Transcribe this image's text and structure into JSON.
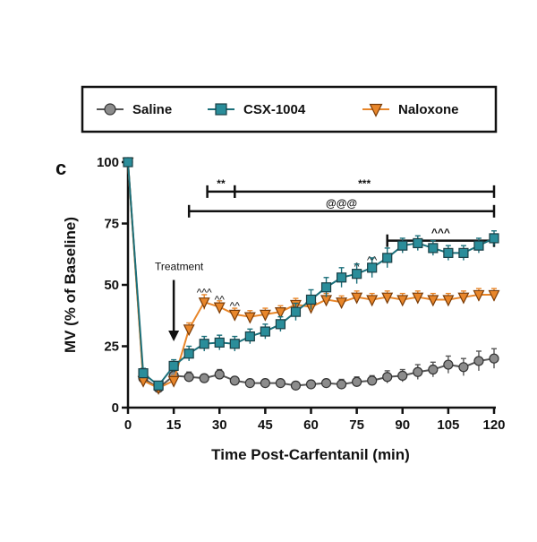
{
  "panel_label": "c",
  "chart_data": {
    "type": "line",
    "xlabel": "Time Post-Carfentanil (min)",
    "ylabel": "MV (% of Baseline)",
    "xlim": [
      0,
      120
    ],
    "ylim": [
      0,
      100
    ],
    "xticks": [
      0,
      15,
      30,
      45,
      60,
      75,
      90,
      105,
      120
    ],
    "yticks": [
      0,
      25,
      50,
      75,
      100
    ],
    "grid": false,
    "legend": "top, framed, horizontal",
    "series": [
      {
        "name": "Saline",
        "marker": "circle",
        "color": "#8c8c8c",
        "line_color": "#555555",
        "x": [
          0,
          5,
          10,
          15,
          20,
          25,
          30,
          35,
          40,
          45,
          50,
          55,
          60,
          65,
          70,
          75,
          80,
          85,
          90,
          95,
          100,
          105,
          110,
          115,
          120
        ],
        "values": [
          100,
          12,
          8,
          13,
          12.5,
          12,
          13.5,
          11,
          10,
          10,
          10,
          9,
          9.5,
          10,
          9.5,
          10.5,
          11,
          12.5,
          13,
          14.5,
          15.5,
          17.5,
          16.5,
          19,
          20
        ],
        "errors": [
          0,
          2,
          1.5,
          2,
          2,
          1.5,
          2,
          1.5,
          1.5,
          1.5,
          1.5,
          1.5,
          1.5,
          1.5,
          2,
          2,
          2,
          2.5,
          2.5,
          3,
          3,
          3.5,
          3.5,
          4,
          4
        ]
      },
      {
        "name": "CSX-1004",
        "marker": "square",
        "color": "#2a8d9a",
        "line_color": "#1b6f7a",
        "x": [
          0,
          5,
          10,
          15,
          20,
          25,
          30,
          35,
          40,
          45,
          50,
          55,
          60,
          65,
          70,
          75,
          80,
          85,
          90,
          95,
          100,
          105,
          110,
          115,
          120
        ],
        "values": [
          100,
          14,
          9,
          17,
          22,
          26,
          26.5,
          26,
          29,
          31,
          34,
          39,
          44,
          49,
          53,
          54.5,
          57,
          61,
          66,
          67,
          65,
          63,
          63,
          66,
          69
        ],
        "errors": [
          0,
          2,
          1.5,
          2.5,
          3,
          3,
          3,
          3,
          3,
          3,
          3,
          3.5,
          4,
          4,
          4,
          4,
          4,
          4,
          3,
          3,
          3,
          3,
          3,
          3,
          3
        ]
      },
      {
        "name": "Naloxone",
        "marker": "triangle-down",
        "color": "#e8862a",
        "line_color": "#e8862a",
        "x": [
          0,
          5,
          10,
          15,
          20,
          25,
          30,
          35,
          40,
          45,
          50,
          55,
          60,
          65,
          70,
          75,
          80,
          85,
          90,
          95,
          100,
          105,
          110,
          115,
          120
        ],
        "values": [
          100,
          11,
          8,
          11,
          32,
          43,
          41,
          38,
          37,
          38,
          39,
          42,
          41,
          44,
          43,
          45,
          44,
          45,
          44,
          45,
          44,
          44,
          45,
          46,
          46
        ],
        "errors": [
          0,
          2,
          1.5,
          2,
          2.5,
          3,
          2.5,
          2.5,
          2.5,
          2.5,
          2.5,
          2.5,
          2.5,
          2.5,
          2.5,
          2.5,
          2.5,
          2.5,
          2.5,
          2.5,
          2.5,
          2.5,
          2.5,
          2.5,
          2.5
        ]
      }
    ],
    "annotations": [
      {
        "text": "Treatment",
        "type": "arrow",
        "x": 15,
        "y_text": 56,
        "y_from": 52,
        "y_to": 27
      }
    ],
    "significance_bars": [
      {
        "text": "**",
        "x_start": 26,
        "x_end": 35,
        "y": 88
      },
      {
        "text": "***",
        "x_start": 35,
        "x_end": 120,
        "y": 88
      },
      {
        "text": "@@@",
        "x_start": 20,
        "x_end": 120,
        "y": 80
      },
      {
        "text": "^^^",
        "x_start": 85,
        "x_end": 120,
        "y": 68
      }
    ],
    "point_markers": [
      {
        "text": "^^^",
        "x": 25,
        "y": 45.5
      },
      {
        "text": "^^",
        "x": 30,
        "y": 42.5
      },
      {
        "text": "^^",
        "x": 35,
        "y": 40
      },
      {
        "text": "^",
        "x": 75,
        "y": 56
      },
      {
        "text": "^^",
        "x": 80,
        "y": 58.5
      }
    ]
  }
}
